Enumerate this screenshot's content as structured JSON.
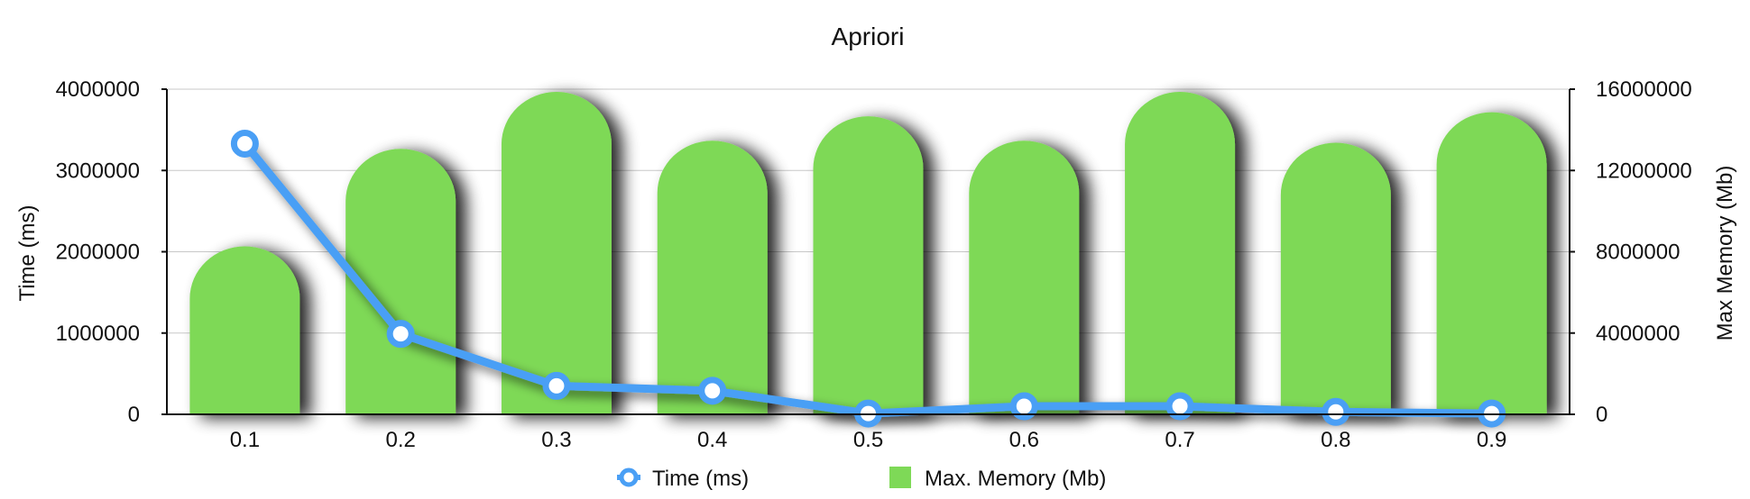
{
  "chart_data": {
    "type": "bar",
    "title": "Apriori",
    "categories": [
      "0.1",
      "0.2",
      "0.3",
      "0.4",
      "0.5",
      "0.6",
      "0.7",
      "0.8",
      "0.9"
    ],
    "ylabel": "Time (ms)",
    "y2label": "Max Memory (Mb)",
    "ylim": [
      0,
      4000000
    ],
    "y2lim": [
      0,
      16000000
    ],
    "yticks": [
      "0",
      "1000000",
      "2000000",
      "3000000",
      "4000000"
    ],
    "y2ticks": [
      "0",
      "4000000",
      "8000000",
      "12000000",
      "16000000"
    ],
    "grid": true,
    "legend_position": "bottom",
    "series": [
      {
        "name": "Max. Memory (Mb)",
        "type": "bar",
        "axis": "right",
        "color": "#7ed957",
        "values": [
          8400000,
          13200000,
          16000000,
          13600000,
          14800000,
          13600000,
          16000000,
          13500000,
          15000000
        ]
      },
      {
        "name": "Time (ms)",
        "type": "line",
        "axis": "left",
        "color": "#4a9ff5",
        "values": [
          3330000,
          990000,
          350000,
          290000,
          10000,
          100000,
          100000,
          30000,
          10000
        ]
      }
    ]
  }
}
